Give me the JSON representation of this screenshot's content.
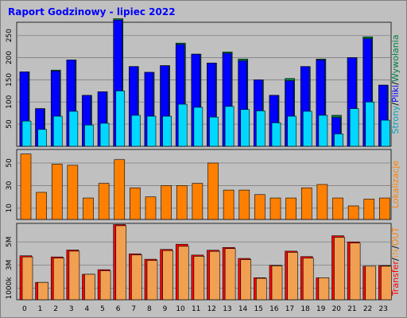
{
  "title": "Raport Godzinowy -  lipiec 2022",
  "colors": {
    "background": "#c0c0c0",
    "hits": "#0000ff",
    "files": "#008040",
    "pages": "#00d8ff",
    "sites": "#ff8000",
    "kbytes": "#ff0000",
    "kbin": "#f0a050",
    "kbout": "#ff8000",
    "title": "#0000ff"
  },
  "chart_data": [
    {
      "type": "bar",
      "categories": [
        "0",
        "1",
        "2",
        "3",
        "4",
        "5",
        "6",
        "7",
        "8",
        "9",
        "10",
        "11",
        "12",
        "13",
        "14",
        "15",
        "16",
        "17",
        "18",
        "19",
        "20",
        "21",
        "22",
        "23"
      ],
      "ylim": [
        0,
        280
      ],
      "yticks": [
        "50",
        "100",
        "150",
        "200",
        "250"
      ],
      "ytick_values": [
        50,
        100,
        150,
        200,
        250
      ],
      "right_label_parts": [
        {
          "text": "Strony",
          "color": "#00a0c0"
        },
        {
          "text": "/",
          "color": "#000000"
        },
        {
          "text": "Pliki",
          "color": "#0000ff"
        },
        {
          "text": "/",
          "color": "#000000"
        },
        {
          "text": "Wywołania",
          "color": "#008040"
        }
      ],
      "series": [
        {
          "key": "hits",
          "values": [
            168,
            85,
            170,
            195,
            115,
            123,
            285,
            180,
            167,
            182,
            230,
            208,
            188,
            210,
            193,
            150,
            115,
            148,
            180,
            195,
            65,
            200,
            243,
            138
          ]
        },
        {
          "key": "files",
          "values": [
            168,
            85,
            172,
            195,
            115,
            123,
            288,
            180,
            167,
            182,
            233,
            208,
            188,
            213,
            197,
            150,
            115,
            153,
            180,
            197,
            70,
            200,
            247,
            138
          ]
        },
        {
          "key": "pages",
          "values": [
            57,
            38,
            68,
            79,
            48,
            52,
            125,
            70,
            68,
            68,
            95,
            88,
            66,
            90,
            83,
            80,
            53,
            68,
            79,
            70,
            28,
            85,
            100,
            59
          ]
        }
      ]
    },
    {
      "type": "bar",
      "categories": [
        "0",
        "1",
        "2",
        "3",
        "4",
        "5",
        "6",
        "7",
        "8",
        "9",
        "10",
        "11",
        "12",
        "13",
        "14",
        "15",
        "16",
        "17",
        "18",
        "19",
        "20",
        "21",
        "22",
        "23"
      ],
      "ylim": [
        0,
        62
      ],
      "yticks": [
        "10",
        "30",
        "50"
      ],
      "ytick_values": [
        10,
        30,
        50
      ],
      "right_label_parts": [
        {
          "text": "Lokalizacje",
          "color": "#ff8000"
        }
      ],
      "series": [
        {
          "key": "sites",
          "values": [
            58,
            24,
            49,
            48,
            19,
            32,
            53,
            28,
            20,
            30,
            30,
            32,
            50,
            26,
            26,
            22,
            19,
            19,
            28,
            31,
            19,
            12,
            18,
            19
          ]
        }
      ]
    },
    {
      "type": "bar",
      "categories": [
        "0",
        "1",
        "2",
        "3",
        "4",
        "5",
        "6",
        "7",
        "8",
        "9",
        "10",
        "11",
        "12",
        "13",
        "14",
        "15",
        "16",
        "17",
        "18",
        "19",
        "20",
        "21",
        "22",
        "23"
      ],
      "ylim": [
        0,
        6600
      ],
      "yticks": [
        "1000k",
        "3M",
        "5M"
      ],
      "ytick_values": [
        1000,
        3000,
        5000
      ],
      "right_label_parts": [
        {
          "text": "Transfer",
          "color": "#ff0000"
        },
        {
          "text": "/",
          "color": "#000000"
        },
        {
          "text": "IN",
          "color": "#f0a050"
        },
        {
          "text": "/",
          "color": "#000000"
        },
        {
          "text": "OUT",
          "color": "#ff8000"
        }
      ],
      "series": [
        {
          "key": "kbytes",
          "values": [
            3800,
            1500,
            3700,
            4300,
            2200,
            2600,
            6500,
            3970,
            3500,
            4350,
            4800,
            3860,
            4280,
            4520,
            3570,
            1900,
            2970,
            4200,
            3730,
            1900,
            5530,
            5000,
            2900,
            2950
          ]
        },
        {
          "key": "kbin",
          "values": [
            3700,
            1500,
            3600,
            4200,
            2200,
            2500,
            6400,
            3870,
            3400,
            4250,
            4620,
            3760,
            4180,
            4420,
            3470,
            1850,
            2930,
            4100,
            3600,
            1900,
            5400,
            4900,
            2900,
            2900
          ]
        }
      ]
    }
  ]
}
